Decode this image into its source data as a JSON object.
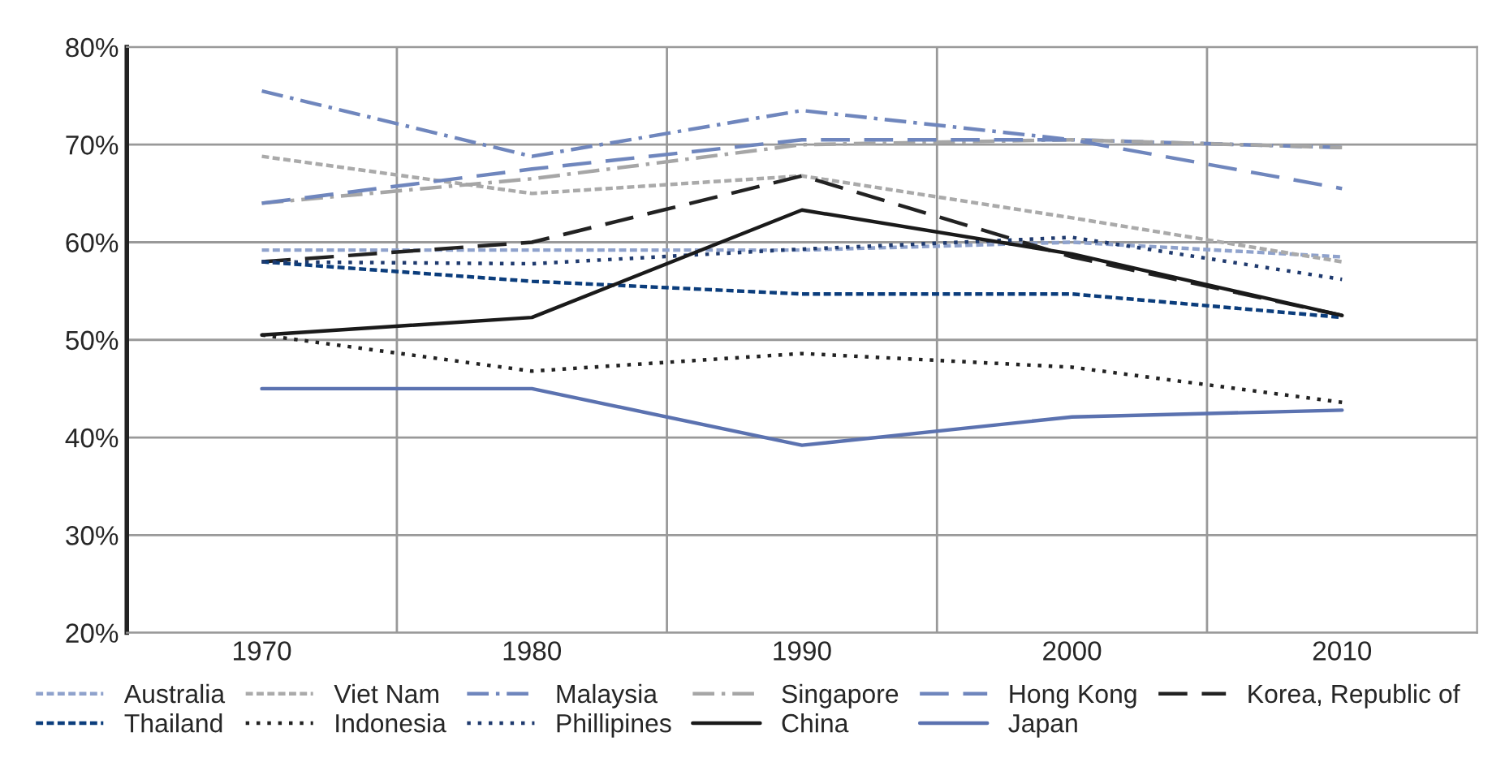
{
  "chart_data": {
    "type": "line",
    "categories": [
      "1970",
      "1980",
      "1990",
      "2000",
      "2010"
    ],
    "ylim": [
      20,
      80
    ],
    "yticks": [
      {
        "value": 20,
        "label": "20%"
      },
      {
        "value": 30,
        "label": "30%"
      },
      {
        "value": 40,
        "label": "40%"
      },
      {
        "value": 50,
        "label": "50%"
      },
      {
        "value": 60,
        "label": "60%"
      },
      {
        "value": 70,
        "label": "70%"
      },
      {
        "value": 80,
        "label": "80%"
      }
    ],
    "grid": true,
    "legend": "bottom",
    "marker": "none",
    "series": [
      {
        "name": "Australia",
        "color": "#8fa2cc",
        "line_style": "dashed",
        "values": [
          59.2,
          59.2,
          59.2,
          60,
          58.5
        ]
      },
      {
        "name": "Viet Nam",
        "color": "#aaaaaa",
        "line_style": "dashed",
        "values": [
          68.8,
          65,
          66.8,
          62.5,
          58
        ]
      },
      {
        "name": "Malaysia",
        "color": "#6f86bd",
        "line_style": "dashdot",
        "values": [
          75.5,
          68.8,
          73.5,
          70.5,
          69.7
        ]
      },
      {
        "name": "Singapore",
        "color": "#a6a6a6",
        "line_style": "dashdot",
        "values": [
          64,
          66.5,
          70,
          70.5,
          69.7
        ]
      },
      {
        "name": "Hong Kong",
        "color": "#6f86bd",
        "line_style": "longdash",
        "values": [
          64,
          67.5,
          70.5,
          70.5,
          65.5
        ]
      },
      {
        "name": "Korea, Republic of",
        "color": "#222222",
        "line_style": "longdash",
        "values": [
          58,
          60,
          66.8,
          58.5,
          52.5
        ]
      },
      {
        "name": "Thailand",
        "color": "#0b3d7c",
        "line_style": "dashed",
        "values": [
          58,
          56,
          54.7,
          54.7,
          52.3
        ]
      },
      {
        "name": "Indonesia",
        "color": "#222222",
        "line_style": "dotted",
        "values": [
          50.5,
          46.8,
          48.6,
          47.2,
          43.6
        ]
      },
      {
        "name": "Phillipines",
        "color": "#1f3a6e",
        "line_style": "dotted",
        "values": [
          58,
          57.8,
          59.3,
          60.5,
          56.2
        ]
      },
      {
        "name": "China",
        "color": "#1a1a1a",
        "line_style": "solid",
        "values": [
          50.5,
          52.3,
          63.3,
          58.8,
          52.5
        ]
      },
      {
        "name": "Japan",
        "color": "#5b72b0",
        "line_style": "solid",
        "values": [
          45,
          45,
          39.2,
          42.1,
          42.8
        ]
      }
    ]
  }
}
